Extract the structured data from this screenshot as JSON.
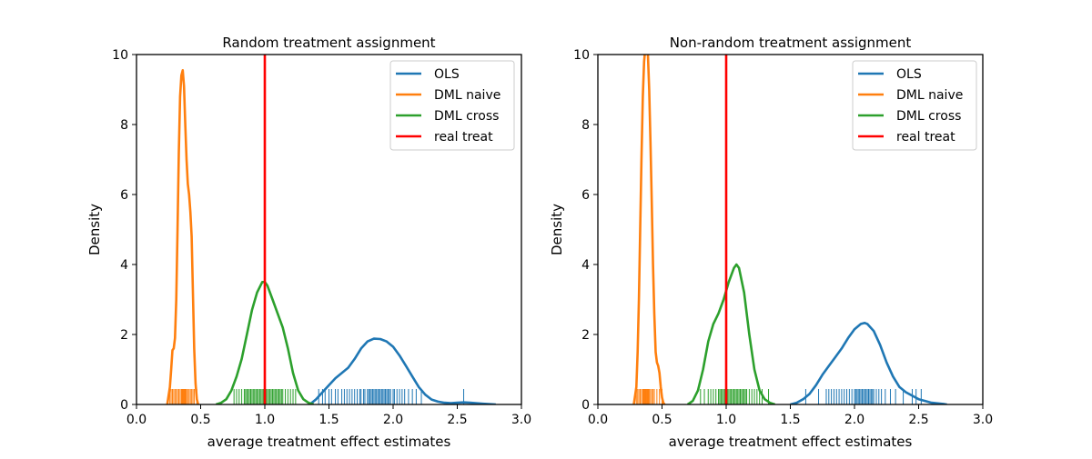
{
  "chart_data": [
    {
      "type": "line",
      "title": "Random treatment assignment",
      "xlabel": "average treatment effect estimates",
      "ylabel": "Density",
      "xlim": [
        0.0,
        3.0
      ],
      "ylim": [
        0,
        10
      ],
      "xticks": [
        "0.0",
        "0.5",
        "1.0",
        "1.5",
        "2.0",
        "2.5",
        "3.0"
      ],
      "yticks": [
        "0",
        "2",
        "4",
        "6",
        "8",
        "10"
      ],
      "legend_position": "top-right",
      "grid": false,
      "series": [
        {
          "name": "OLS",
          "color": "#1f77b4",
          "points": [
            [
              1.35,
              0.0
            ],
            [
              1.4,
              0.15
            ],
            [
              1.45,
              0.35
            ],
            [
              1.5,
              0.55
            ],
            [
              1.55,
              0.75
            ],
            [
              1.6,
              0.9
            ],
            [
              1.65,
              1.05
            ],
            [
              1.7,
              1.3
            ],
            [
              1.75,
              1.6
            ],
            [
              1.8,
              1.8
            ],
            [
              1.85,
              1.88
            ],
            [
              1.9,
              1.87
            ],
            [
              1.95,
              1.8
            ],
            [
              2.0,
              1.65
            ],
            [
              2.05,
              1.4
            ],
            [
              2.1,
              1.1
            ],
            [
              2.15,
              0.8
            ],
            [
              2.2,
              0.5
            ],
            [
              2.25,
              0.28
            ],
            [
              2.3,
              0.14
            ],
            [
              2.35,
              0.08
            ],
            [
              2.4,
              0.05
            ],
            [
              2.45,
              0.04
            ],
            [
              2.5,
              0.05
            ],
            [
              2.55,
              0.06
            ],
            [
              2.6,
              0.05
            ],
            [
              2.7,
              0.02
            ],
            [
              2.8,
              0.0
            ]
          ],
          "rug": [
            1.42,
            1.45,
            1.47,
            1.5,
            1.52,
            1.55,
            1.57,
            1.6,
            1.62,
            1.64,
            1.66,
            1.68,
            1.7,
            1.72,
            1.74,
            1.75,
            1.77,
            1.78,
            1.8,
            1.81,
            1.82,
            1.83,
            1.84,
            1.85,
            1.86,
            1.87,
            1.88,
            1.89,
            1.9,
            1.91,
            1.92,
            1.93,
            1.94,
            1.95,
            1.96,
            1.97,
            1.98,
            2.0,
            2.01,
            2.03,
            2.05,
            2.07,
            2.09,
            2.12,
            2.15,
            2.18,
            2.22,
            2.55
          ]
        },
        {
          "name": "DML naive",
          "color": "#ff7f0e",
          "points": [
            [
              0.24,
              0.0
            ],
            [
              0.26,
              0.5
            ],
            [
              0.27,
              1.0
            ],
            [
              0.28,
              1.55
            ],
            [
              0.29,
              1.6
            ],
            [
              0.3,
              1.9
            ],
            [
              0.31,
              3.0
            ],
            [
              0.32,
              5.0
            ],
            [
              0.33,
              7.2
            ],
            [
              0.34,
              8.8
            ],
            [
              0.35,
              9.4
            ],
            [
              0.36,
              9.55
            ],
            [
              0.37,
              9.1
            ],
            [
              0.38,
              8.0
            ],
            [
              0.39,
              7.0
            ],
            [
              0.4,
              6.3
            ],
            [
              0.41,
              6.0
            ],
            [
              0.42,
              5.5
            ],
            [
              0.43,
              4.8
            ],
            [
              0.44,
              3.2
            ],
            [
              0.45,
              1.6
            ],
            [
              0.46,
              0.6
            ],
            [
              0.47,
              0.15
            ],
            [
              0.48,
              0.0
            ]
          ],
          "rug": [
            0.26,
            0.27,
            0.28,
            0.29,
            0.3,
            0.31,
            0.32,
            0.33,
            0.34,
            0.35,
            0.355,
            0.36,
            0.365,
            0.37,
            0.375,
            0.38,
            0.385,
            0.39,
            0.4,
            0.41,
            0.42,
            0.43,
            0.44,
            0.45,
            0.47
          ]
        },
        {
          "name": "DML cross",
          "color": "#2ca02c",
          "points": [
            [
              0.62,
              0.0
            ],
            [
              0.66,
              0.05
            ],
            [
              0.7,
              0.15
            ],
            [
              0.74,
              0.4
            ],
            [
              0.78,
              0.8
            ],
            [
              0.82,
              1.3
            ],
            [
              0.86,
              2.0
            ],
            [
              0.9,
              2.7
            ],
            [
              0.94,
              3.2
            ],
            [
              0.98,
              3.5
            ],
            [
              1.0,
              3.5
            ],
            [
              1.02,
              3.4
            ],
            [
              1.06,
              3.0
            ],
            [
              1.1,
              2.6
            ],
            [
              1.14,
              2.2
            ],
            [
              1.18,
              1.6
            ],
            [
              1.22,
              0.9
            ],
            [
              1.26,
              0.4
            ],
            [
              1.3,
              0.15
            ],
            [
              1.34,
              0.05
            ],
            [
              1.38,
              0.0
            ]
          ],
          "rug": [
            0.76,
            0.78,
            0.8,
            0.82,
            0.84,
            0.85,
            0.86,
            0.87,
            0.88,
            0.89,
            0.9,
            0.91,
            0.92,
            0.93,
            0.94,
            0.95,
            0.96,
            0.97,
            0.98,
            0.99,
            1.0,
            1.01,
            1.02,
            1.03,
            1.04,
            1.05,
            1.06,
            1.07,
            1.08,
            1.09,
            1.1,
            1.11,
            1.12,
            1.13,
            1.14,
            1.16,
            1.18,
            1.2,
            1.22,
            1.24
          ]
        },
        {
          "name": "real treat",
          "color": "#ff0000",
          "vline": 1.0
        }
      ]
    },
    {
      "type": "line",
      "title": "Non-random treatment assignment",
      "xlabel": "average treatment effect estimates",
      "ylabel": "Density",
      "xlim": [
        0.0,
        3.0
      ],
      "ylim": [
        0,
        10
      ],
      "xticks": [
        "0.0",
        "0.5",
        "1.0",
        "1.5",
        "2.0",
        "2.5",
        "3.0"
      ],
      "yticks": [
        "0",
        "2",
        "4",
        "6",
        "8",
        "10"
      ],
      "legend_position": "top-right",
      "grid": false,
      "series": [
        {
          "name": "OLS",
          "color": "#1f77b4",
          "points": [
            [
              1.5,
              0.0
            ],
            [
              1.55,
              0.05
            ],
            [
              1.6,
              0.15
            ],
            [
              1.65,
              0.3
            ],
            [
              1.7,
              0.55
            ],
            [
              1.75,
              0.85
            ],
            [
              1.8,
              1.1
            ],
            [
              1.85,
              1.35
            ],
            [
              1.9,
              1.6
            ],
            [
              1.95,
              1.9
            ],
            [
              2.0,
              2.15
            ],
            [
              2.05,
              2.3
            ],
            [
              2.08,
              2.33
            ],
            [
              2.1,
              2.3
            ],
            [
              2.15,
              2.1
            ],
            [
              2.2,
              1.7
            ],
            [
              2.25,
              1.2
            ],
            [
              2.3,
              0.8
            ],
            [
              2.35,
              0.5
            ],
            [
              2.4,
              0.35
            ],
            [
              2.45,
              0.25
            ],
            [
              2.5,
              0.15
            ],
            [
              2.55,
              0.1
            ],
            [
              2.6,
              0.05
            ],
            [
              2.7,
              0.01
            ],
            [
              2.72,
              0.0
            ]
          ],
          "rug": [
            1.62,
            1.72,
            1.78,
            1.8,
            1.82,
            1.84,
            1.86,
            1.88,
            1.9,
            1.92,
            1.94,
            1.96,
            1.98,
            2.0,
            2.01,
            2.02,
            2.03,
            2.04,
            2.05,
            2.06,
            2.07,
            2.08,
            2.09,
            2.1,
            2.11,
            2.12,
            2.13,
            2.14,
            2.15,
            2.17,
            2.19,
            2.21,
            2.24,
            2.28,
            2.32,
            2.38,
            2.45,
            2.48,
            2.52
          ]
        },
        {
          "name": "DML naive",
          "color": "#ff7f0e",
          "points": [
            [
              0.28,
              0.0
            ],
            [
              0.3,
              0.5
            ],
            [
              0.31,
              1.5
            ],
            [
              0.32,
              3.0
            ],
            [
              0.33,
              5.0
            ],
            [
              0.34,
              7.0
            ],
            [
              0.35,
              8.8
            ],
            [
              0.36,
              9.8
            ],
            [
              0.37,
              10.2
            ],
            [
              0.38,
              10.3
            ],
            [
              0.39,
              10.0
            ],
            [
              0.4,
              9.0
            ],
            [
              0.41,
              7.5
            ],
            [
              0.42,
              5.8
            ],
            [
              0.43,
              4.0
            ],
            [
              0.44,
              2.6
            ],
            [
              0.45,
              1.5
            ],
            [
              0.46,
              1.2
            ],
            [
              0.47,
              1.1
            ],
            [
              0.48,
              0.9
            ],
            [
              0.49,
              0.5
            ],
            [
              0.5,
              0.2
            ],
            [
              0.51,
              0.05
            ],
            [
              0.52,
              0.0
            ]
          ],
          "rug": [
            0.3,
            0.31,
            0.32,
            0.33,
            0.34,
            0.35,
            0.355,
            0.36,
            0.365,
            0.37,
            0.375,
            0.38,
            0.385,
            0.39,
            0.395,
            0.4,
            0.41,
            0.42,
            0.43,
            0.44,
            0.46,
            0.48,
            0.5
          ]
        },
        {
          "name": "DML cross",
          "color": "#2ca02c",
          "points": [
            [
              0.7,
              0.0
            ],
            [
              0.74,
              0.1
            ],
            [
              0.78,
              0.4
            ],
            [
              0.82,
              1.0
            ],
            [
              0.86,
              1.8
            ],
            [
              0.9,
              2.3
            ],
            [
              0.94,
              2.6
            ],
            [
              0.98,
              3.0
            ],
            [
              1.02,
              3.5
            ],
            [
              1.06,
              3.9
            ],
            [
              1.08,
              4.0
            ],
            [
              1.1,
              3.9
            ],
            [
              1.14,
              3.2
            ],
            [
              1.18,
              2.0
            ],
            [
              1.22,
              1.0
            ],
            [
              1.26,
              0.4
            ],
            [
              1.3,
              0.15
            ],
            [
              1.34,
              0.05
            ],
            [
              1.38,
              0.0
            ]
          ],
          "rug": [
            0.8,
            0.83,
            0.86,
            0.88,
            0.9,
            0.92,
            0.94,
            0.95,
            0.96,
            0.97,
            0.98,
            0.99,
            1.0,
            1.01,
            1.02,
            1.03,
            1.04,
            1.05,
            1.06,
            1.07,
            1.08,
            1.09,
            1.1,
            1.11,
            1.12,
            1.13,
            1.14,
            1.15,
            1.16,
            1.18,
            1.2,
            1.22,
            1.24,
            1.26,
            1.28,
            1.33
          ]
        },
        {
          "name": "real treat",
          "color": "#ff0000",
          "vline": 1.0
        }
      ]
    }
  ]
}
